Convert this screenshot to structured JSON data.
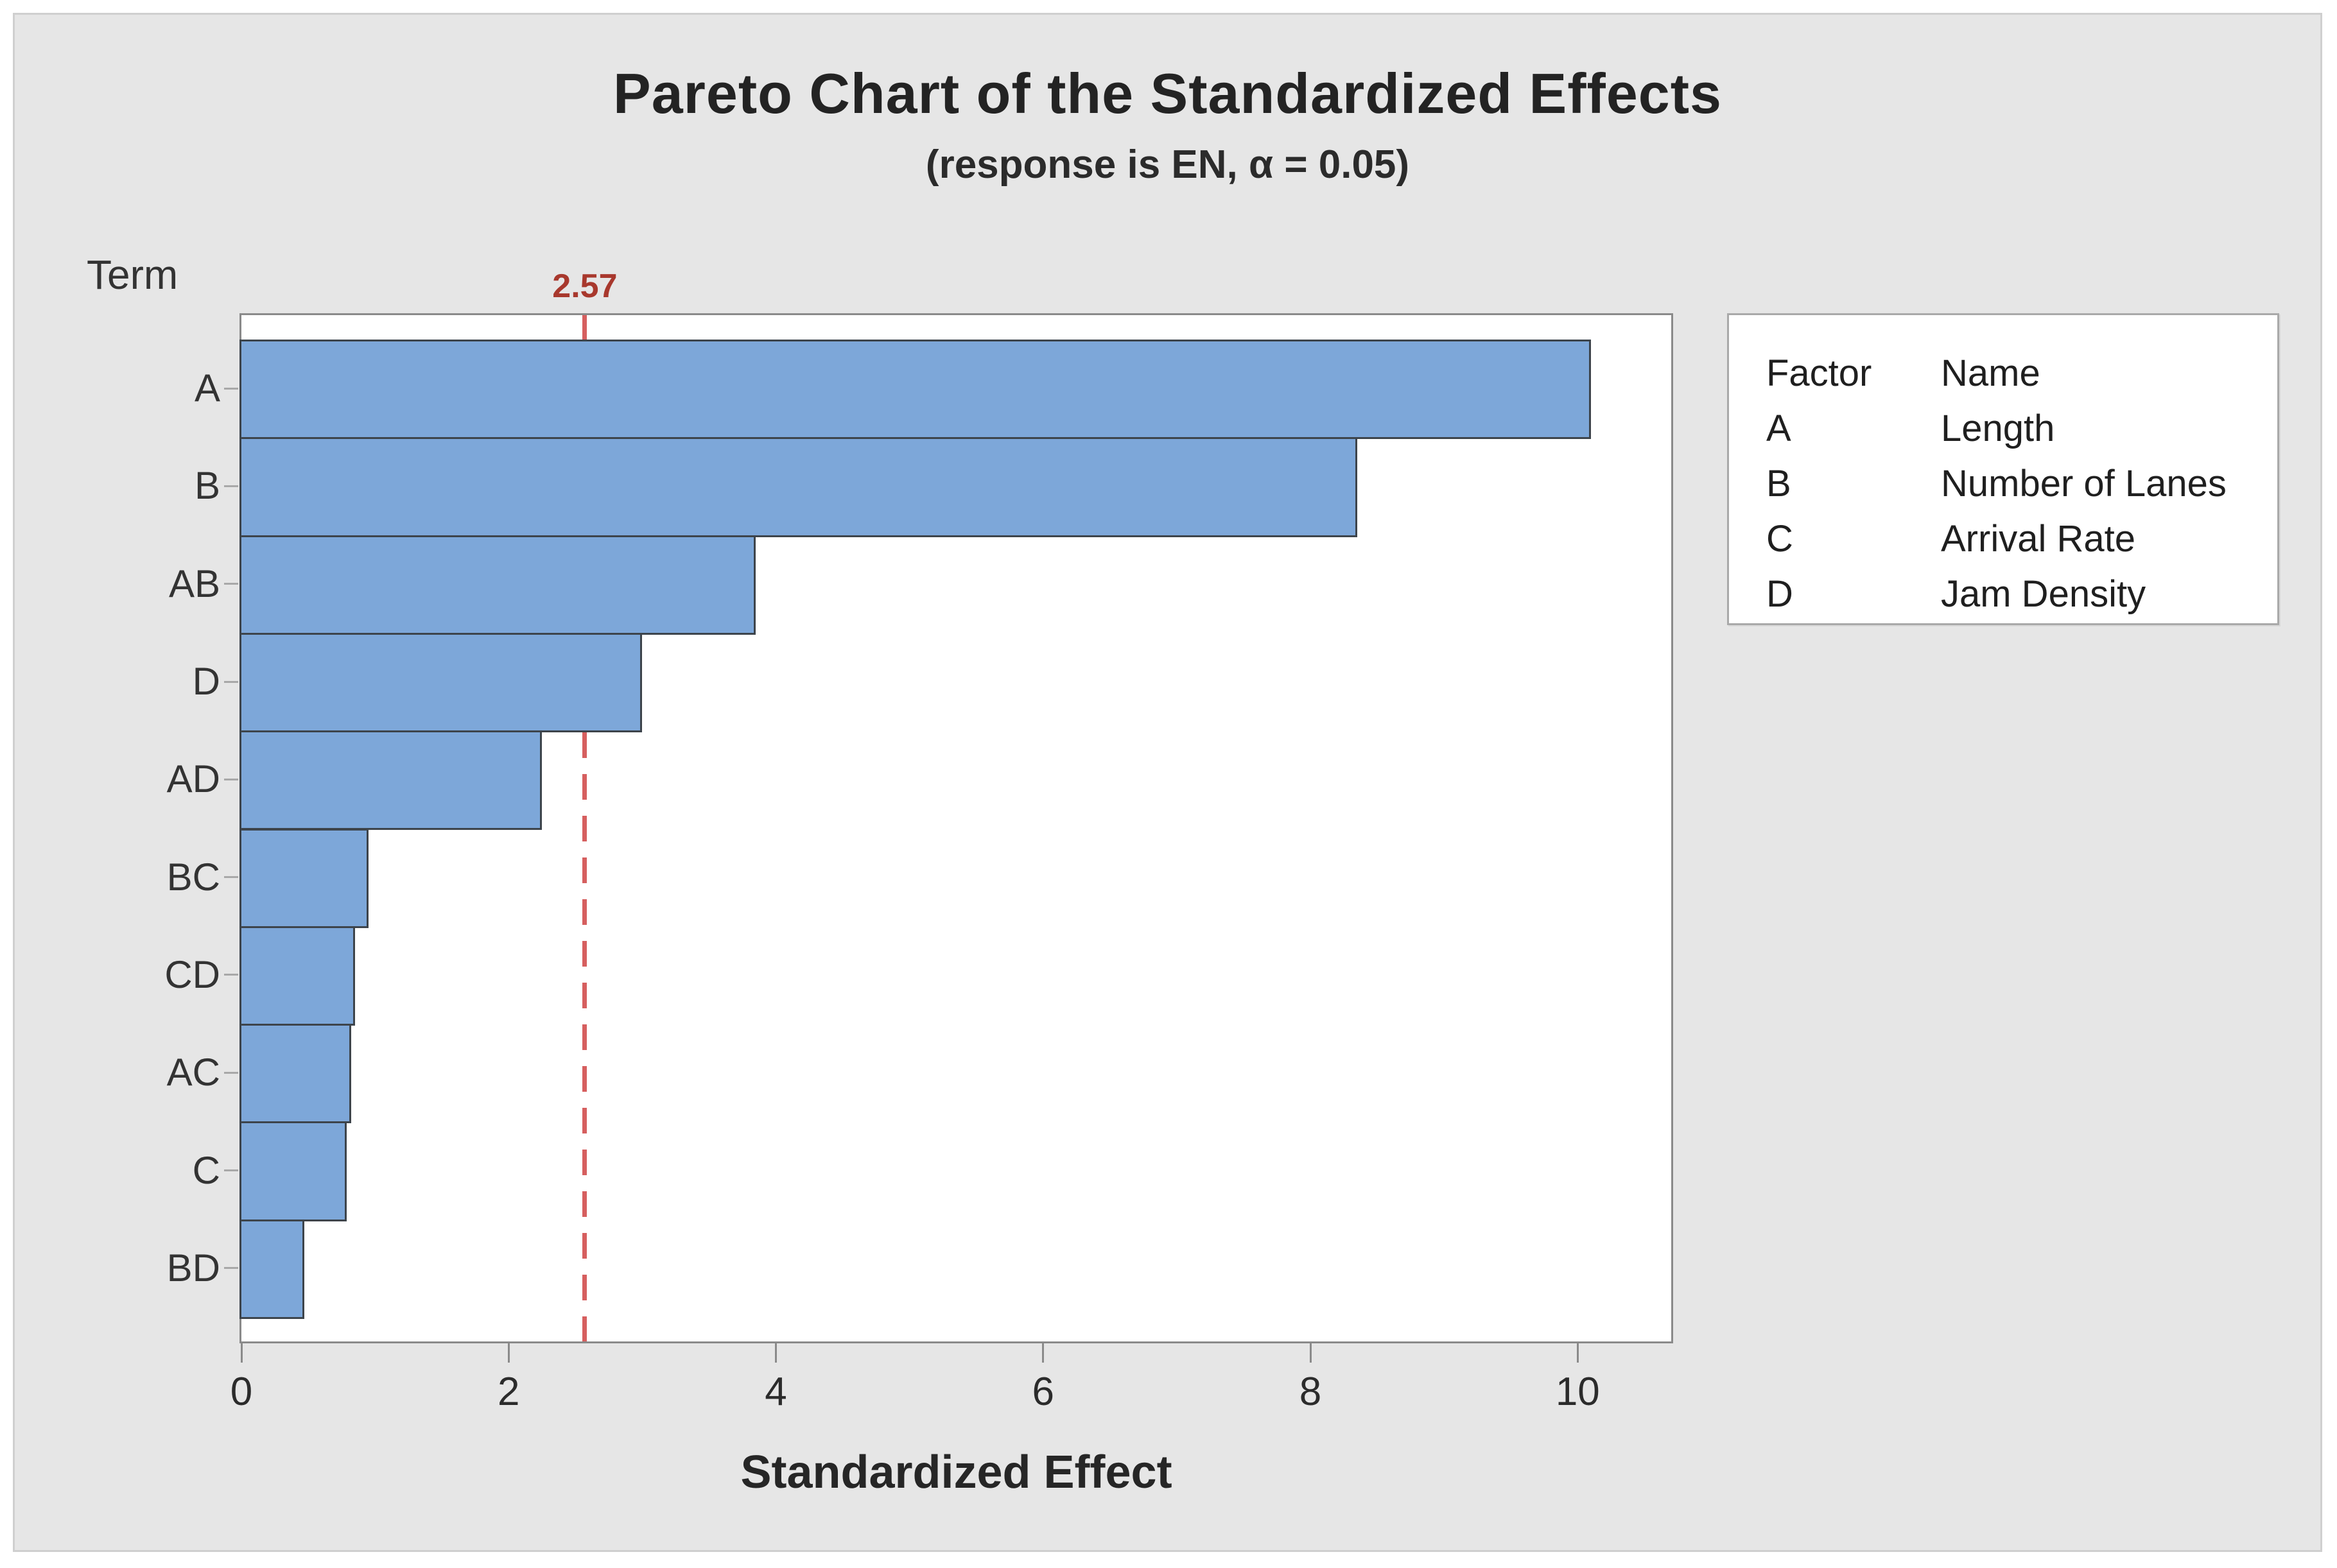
{
  "chart_data": {
    "type": "bar",
    "orientation": "horizontal",
    "title": "Pareto Chart of the Standardized Effects",
    "subtitle": "(response is EN, α = 0.05)",
    "xlabel": "Standardized Effect",
    "ylabel": "Term",
    "categories": [
      "A",
      "B",
      "AB",
      "D",
      "AD",
      "BC",
      "CD",
      "AC",
      "C",
      "BD"
    ],
    "values": [
      10.1,
      8.35,
      3.85,
      3.0,
      2.25,
      0.95,
      0.85,
      0.82,
      0.79,
      0.47
    ],
    "x_ticks": [
      0,
      2,
      4,
      6,
      8,
      10
    ],
    "xlim": [
      0,
      10.7
    ],
    "grid": false,
    "reference_line": {
      "value": 2.57,
      "label": "2.57"
    },
    "colors": {
      "bar_fill": "#7da7d9",
      "bar_border": "#3d444b",
      "reference_line": "#d65f5f",
      "reference_label": "#a8382d",
      "figure_background": "#e6e6e6",
      "plot_background": "#ffffff"
    },
    "legend": {
      "position": "right",
      "columns": [
        "Factor",
        "Name"
      ],
      "rows": [
        {
          "factor": "A",
          "name": "Length"
        },
        {
          "factor": "B",
          "name": "Number of Lanes"
        },
        {
          "factor": "C",
          "name": "Arrival Rate"
        },
        {
          "factor": "D",
          "name": "Jam Density"
        }
      ]
    }
  }
}
